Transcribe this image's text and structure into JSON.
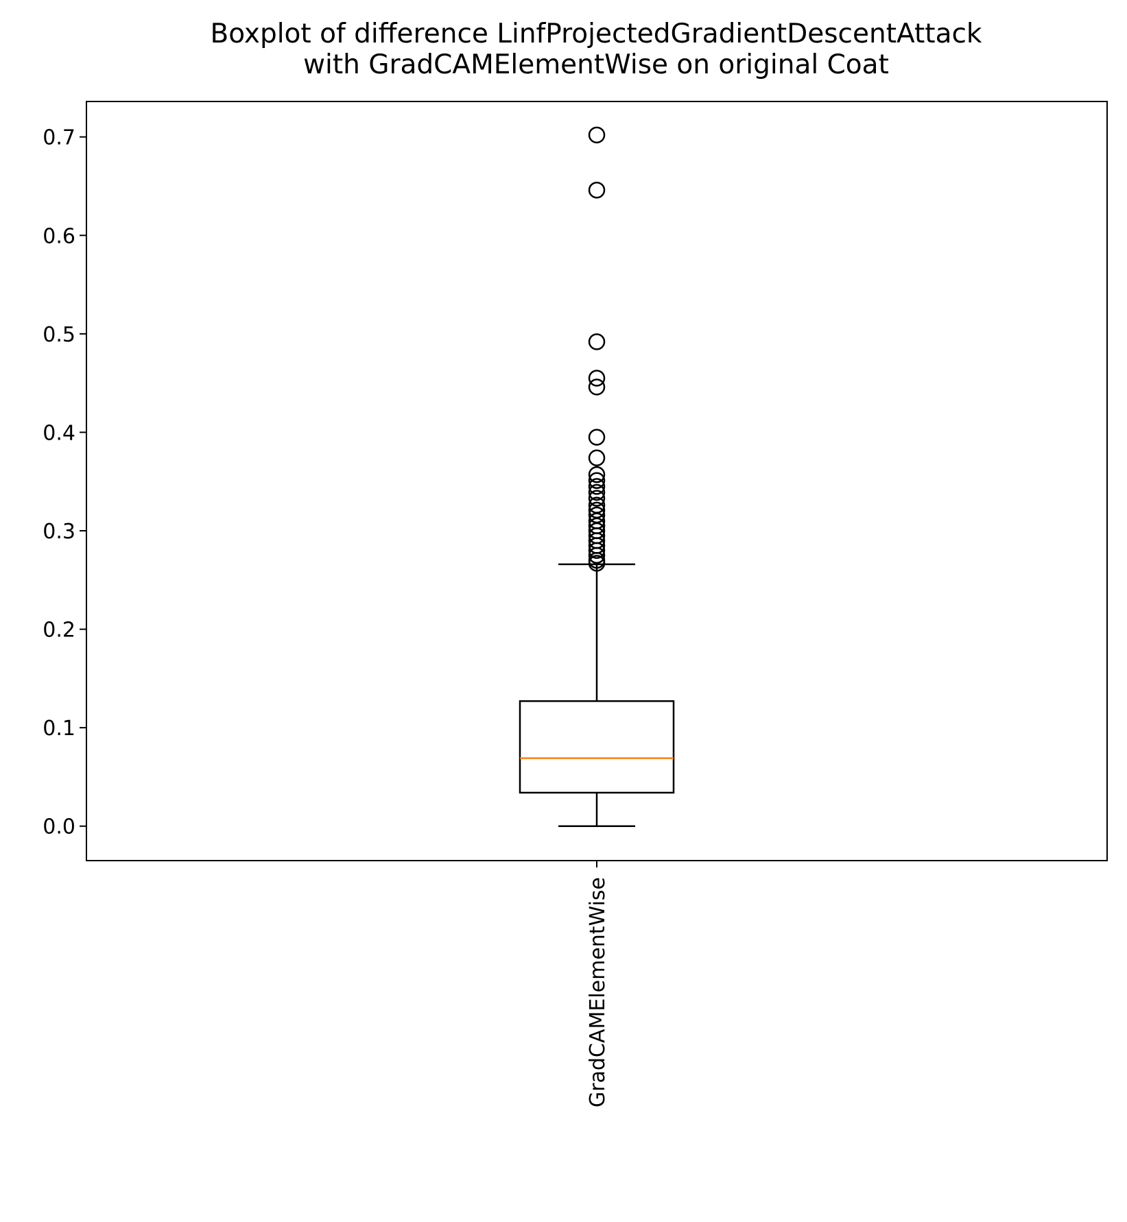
{
  "chart_data": {
    "type": "box",
    "title_lines": [
      "Boxplot of difference LinfProjectedGradientDescentAttack",
      "with GradCAMElementWise on original Coat"
    ],
    "xlabel": "",
    "ylabel": "",
    "categories": [
      "GradCAMElementWise"
    ],
    "ylim": [
      -0.035,
      0.736
    ],
    "yticks": [
      0.0,
      0.1,
      0.2,
      0.3,
      0.4,
      0.5,
      0.6,
      0.7
    ],
    "ytick_labels": [
      "0.0",
      "0.1",
      "0.2",
      "0.3",
      "0.4",
      "0.5",
      "0.6",
      "0.7"
    ],
    "grid": false,
    "boxes": [
      {
        "category": "GradCAMElementWise",
        "whisker_low": 0.0,
        "q1": 0.034,
        "median": 0.069,
        "q3": 0.127,
        "whisker_high": 0.266,
        "outliers": [
          0.702,
          0.646,
          0.492,
          0.455,
          0.446,
          0.395,
          0.374,
          0.357,
          0.351,
          0.345,
          0.339,
          0.333,
          0.326,
          0.321,
          0.316,
          0.31,
          0.305,
          0.3,
          0.295,
          0.29,
          0.285,
          0.28,
          0.275,
          0.27,
          0.267
        ]
      }
    ],
    "colors": {
      "box": "#000000",
      "median": "#ff7f0e",
      "outlier_edge": "#000000"
    }
  }
}
